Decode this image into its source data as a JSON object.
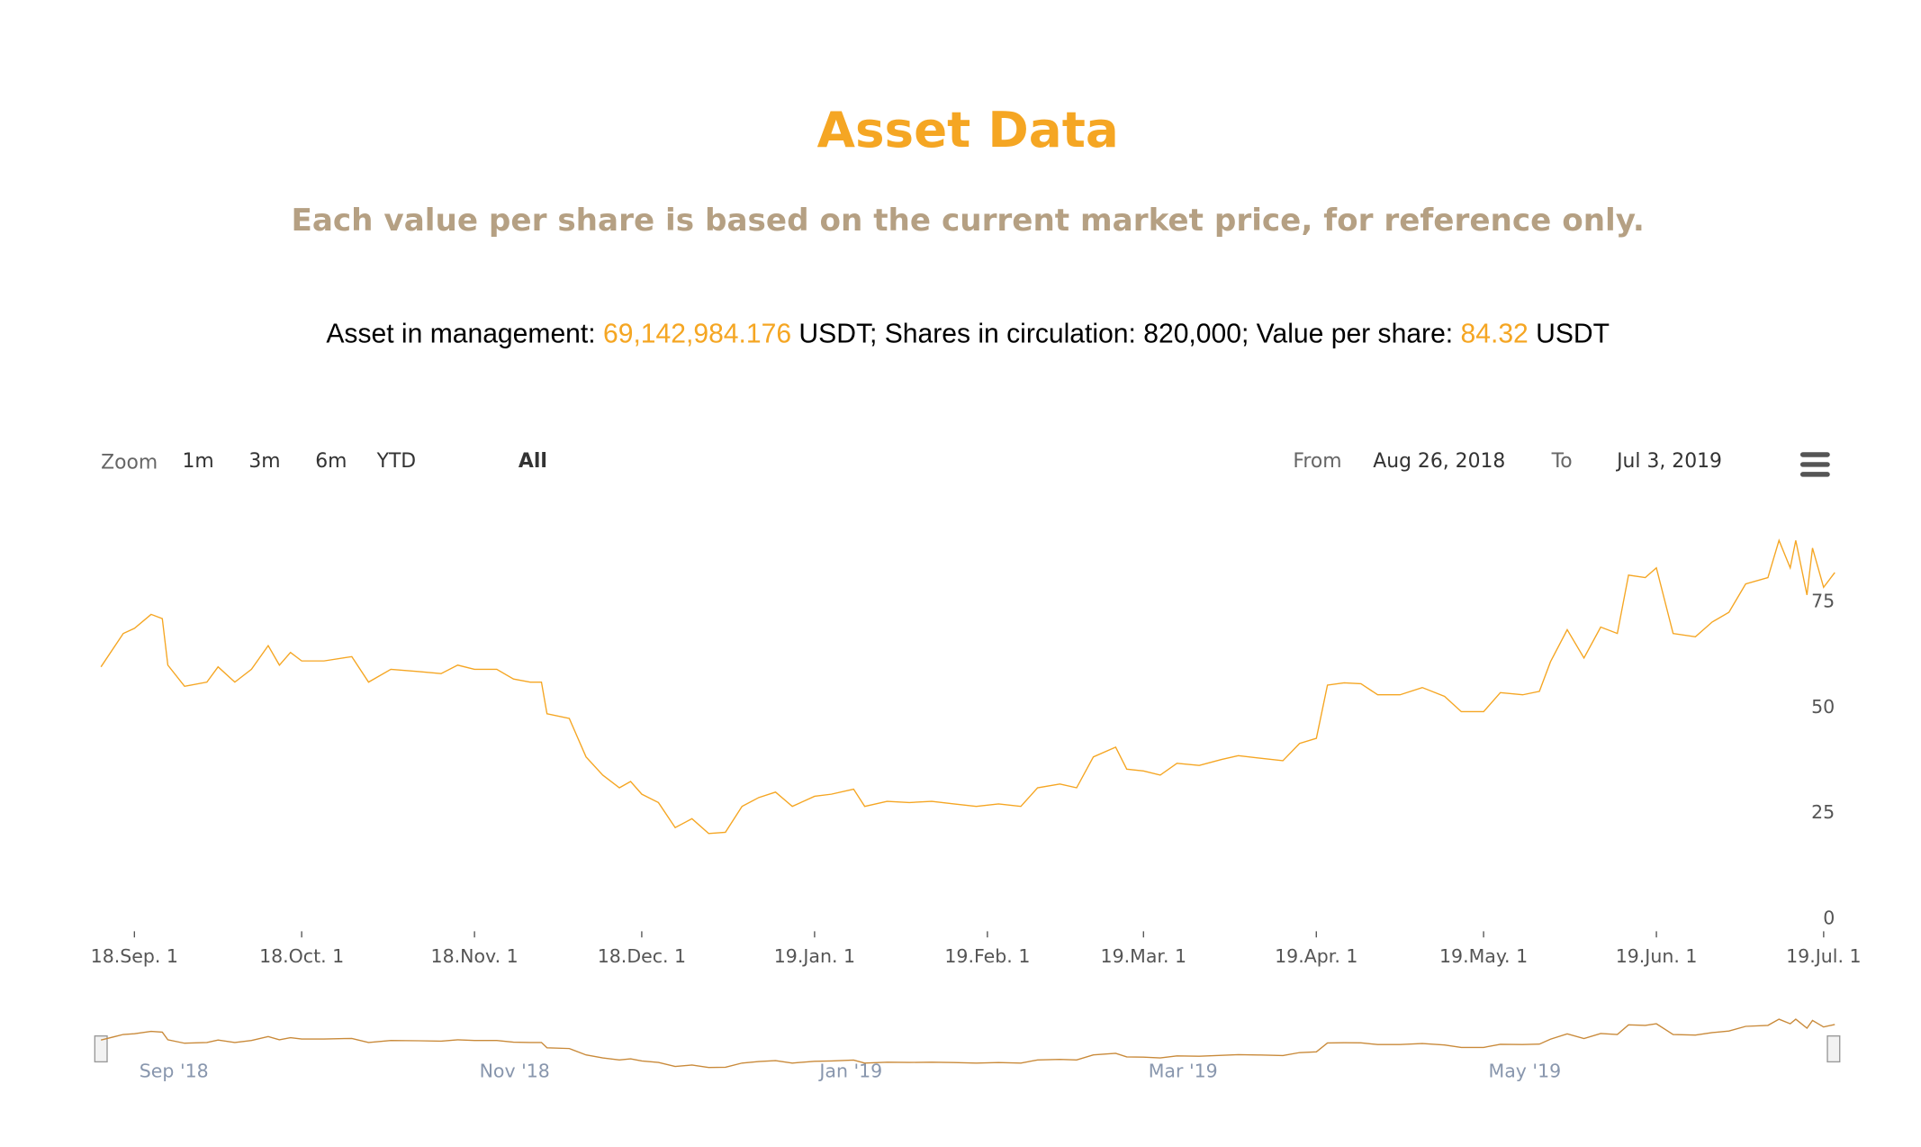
{
  "header": {
    "title": "Asset Data",
    "subtitle": "Each value per share is based on the current market price, for reference only."
  },
  "summary": {
    "aum_label": "Asset in management: ",
    "aum_value": "69,142,984.176",
    "mid": " USDT; Shares in circulation: 820,000; Value per share: ",
    "vps_value": "84.32",
    "unit": " USDT"
  },
  "range_selector": {
    "zoom": "Zoom",
    "buttons": [
      "1m",
      "3m",
      "6m",
      "YTD",
      "All"
    ],
    "from_label": "From",
    "from": "Aug 26, 2018",
    "to_label": "To",
    "to": "Jul 3, 2019"
  },
  "chart_data": {
    "type": "line",
    "color": "#f5a623",
    "grid": false,
    "x": [
      "2018-08-26",
      "2018-08-30",
      "2018-09-01",
      "2018-09-04",
      "2018-09-06",
      "2018-09-07",
      "2018-09-10",
      "2018-09-14",
      "2018-09-16",
      "2018-09-19",
      "2018-09-22",
      "2018-09-25",
      "2018-09-27",
      "2018-09-29",
      "2018-10-01",
      "2018-10-05",
      "2018-10-10",
      "2018-10-13",
      "2018-10-17",
      "2018-10-22",
      "2018-10-26",
      "2018-10-29",
      "2018-11-01",
      "2018-11-05",
      "2018-11-08",
      "2018-11-11",
      "2018-11-13",
      "2018-11-14",
      "2018-11-18",
      "2018-11-21",
      "2018-11-24",
      "2018-11-27",
      "2018-11-29",
      "2018-12-01",
      "2018-12-04",
      "2018-12-07",
      "2018-12-10",
      "2018-12-13",
      "2018-12-16",
      "2018-12-19",
      "2018-12-22",
      "2018-12-25",
      "2018-12-28",
      "2019-01-01",
      "2019-01-04",
      "2019-01-08",
      "2019-01-10",
      "2019-01-14",
      "2019-01-18",
      "2019-01-22",
      "2019-01-26",
      "2019-01-30",
      "2019-02-03",
      "2019-02-07",
      "2019-02-10",
      "2019-02-14",
      "2019-02-17",
      "2019-02-20",
      "2019-02-24",
      "2019-02-26",
      "2019-03-01",
      "2019-03-04",
      "2019-03-07",
      "2019-03-11",
      "2019-03-15",
      "2019-03-18",
      "2019-03-22",
      "2019-03-26",
      "2019-03-29",
      "2019-04-01",
      "2019-04-03",
      "2019-04-06",
      "2019-04-09",
      "2019-04-12",
      "2019-04-16",
      "2019-04-20",
      "2019-04-24",
      "2019-04-27",
      "2019-05-01",
      "2019-05-04",
      "2019-05-08",
      "2019-05-11",
      "2019-05-13",
      "2019-05-16",
      "2019-05-19",
      "2019-05-22",
      "2019-05-25",
      "2019-05-27",
      "2019-05-30",
      "2019-06-01",
      "2019-06-04",
      "2019-06-08",
      "2019-06-11",
      "2019-06-14",
      "2019-06-17",
      "2019-06-21",
      "2019-06-23",
      "2019-06-25",
      "2019-06-26",
      "2019-06-28",
      "2019-06-29",
      "2019-07-01",
      "2019-07-03"
    ],
    "values": [
      59.6,
      67.5,
      68.7,
      72,
      71,
      60,
      55,
      56,
      59.6,
      56,
      59,
      64.6,
      60,
      63,
      61,
      61,
      62,
      56,
      59,
      58.5,
      58,
      60,
      59,
      59,
      56.7,
      56,
      56,
      48.5,
      47.4,
      38.3,
      34,
      31,
      32.5,
      29.5,
      27.5,
      21.6,
      23.7,
      20.2,
      20.5,
      26.6,
      28.7,
      30,
      26.6,
      29,
      29.5,
      30.7,
      26.6,
      27.8,
      27.5,
      27.8,
      27.2,
      26.6,
      27.2,
      26.6,
      31,
      31.9,
      31,
      38.3,
      40.6,
      35.4,
      35,
      34,
      36.8,
      36.3,
      37.7,
      38.6,
      38,
      37.4,
      41.5,
      42.7,
      55.3,
      55.8,
      55.6,
      53,
      53,
      54.7,
      52.6,
      49,
      49,
      53.5,
      53,
      53.8,
      60.8,
      68.4,
      61.7,
      69,
      67.5,
      81.3,
      80.7,
      83,
      67.5,
      66.7,
      70.2,
      72.5,
      79.2,
      80.7,
      89.5,
      83,
      89.5,
      76.6,
      87.7,
      78.4,
      81.9
    ],
    "xlim": [
      "2018-08-26",
      "2019-07-03"
    ],
    "xticks": [
      {
        "value": "2018-09-01",
        "label": "18.Sep. 1"
      },
      {
        "value": "2018-10-01",
        "label": "18.Oct. 1"
      },
      {
        "value": "2018-11-01",
        "label": "18.Nov. 1"
      },
      {
        "value": "2018-12-01",
        "label": "18.Dec. 1"
      },
      {
        "value": "2019-01-01",
        "label": "19.Jan. 1"
      },
      {
        "value": "2019-02-01",
        "label": "19.Feb. 1"
      },
      {
        "value": "2019-03-01",
        "label": "19.Mar. 1"
      },
      {
        "value": "2019-04-01",
        "label": "19.Apr. 1"
      },
      {
        "value": "2019-05-01",
        "label": "19.May. 1"
      },
      {
        "value": "2019-06-01",
        "label": "19.Jun. 1"
      },
      {
        "value": "2019-07-01",
        "label": "19.Jul. 1"
      }
    ],
    "ylim": [
      0,
      92
    ],
    "yticks": [
      0,
      25,
      50,
      75
    ],
    "navigator_ticks": [
      {
        "value": "2018-09-01",
        "label": "Sep '18"
      },
      {
        "value": "2018-11-01",
        "label": "Nov '18"
      },
      {
        "value": "2019-01-01",
        "label": "Jan '19"
      },
      {
        "value": "2019-03-01",
        "label": "Mar '19"
      },
      {
        "value": "2019-05-01",
        "label": "May '19"
      }
    ]
  }
}
